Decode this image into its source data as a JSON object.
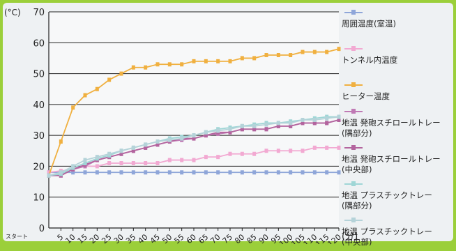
{
  "chart_data": {
    "type": "line",
    "ylabel": "(°C)",
    "xlabel": "(分)",
    "ylim": [
      0,
      70
    ],
    "yticks": [
      0,
      10,
      20,
      30,
      40,
      50,
      60,
      70
    ],
    "x_start_label": "スタート",
    "x": [
      0,
      5,
      10,
      15,
      20,
      25,
      30,
      35,
      40,
      45,
      50,
      55,
      60,
      65,
      70,
      75,
      80,
      85,
      90,
      95,
      100,
      105,
      110,
      115,
      120
    ],
    "x_tick_labels": [
      "5",
      "10",
      "15",
      "20",
      "25",
      "30",
      "35",
      "40",
      "45",
      "50",
      "55",
      "60",
      "65",
      "70",
      "75",
      "80",
      "85",
      "90",
      "95",
      "100",
      "105",
      "110",
      "115",
      "120"
    ],
    "grid": true,
    "legend_position": "right",
    "series": [
      {
        "name": "周囲温度(室温)",
        "color": "#8fa6d9",
        "values": [
          18,
          18,
          18,
          18,
          18,
          18,
          18,
          18,
          18,
          18,
          18,
          18,
          18,
          18,
          18,
          18,
          18,
          18,
          18,
          18,
          18,
          18,
          18,
          18,
          18
        ]
      },
      {
        "name": "トンネル内温度",
        "color": "#f2a9d2",
        "values": [
          18,
          18.5,
          19,
          20,
          20,
          21,
          21,
          21,
          21,
          21,
          22,
          22,
          22,
          23,
          23,
          24,
          24,
          24,
          25,
          25,
          25,
          25,
          26,
          26,
          26
        ]
      },
      {
        "name": "ヒーター温度",
        "color": "#f0b040",
        "values": [
          17,
          28,
          39,
          43,
          45,
          48,
          50,
          52,
          52,
          53,
          53,
          53,
          54,
          54,
          54,
          54,
          55,
          55,
          56,
          56,
          56,
          57,
          57,
          57,
          58
        ]
      },
      {
        "name": "地温 発砲スチロールトレー\n(隅部分)",
        "color": "#c07ab5",
        "values": [
          17,
          17,
          19,
          20,
          22,
          23,
          24,
          25,
          26,
          27,
          28,
          28.5,
          29,
          30,
          30.5,
          31,
          32,
          32,
          32,
          33,
          33,
          34,
          34,
          34,
          35
        ]
      },
      {
        "name": "地温 発砲スチロールトレー\n(中央部)",
        "color": "#b3649e",
        "values": [
          17,
          17,
          19,
          20.5,
          22,
          23,
          24,
          25,
          26,
          27,
          28,
          29,
          29,
          30,
          31,
          31,
          32,
          32,
          32,
          33,
          33,
          34,
          34,
          34,
          35
        ]
      },
      {
        "name": "地温 プラスチックトレー\n(隅部分)",
        "color": "#9fd6d6",
        "values": [
          17,
          17.5,
          19.5,
          21,
          22.5,
          23.5,
          25,
          26,
          27,
          28,
          29,
          29.5,
          30,
          31,
          32,
          32.5,
          33,
          33.5,
          34,
          34,
          34.5,
          35,
          35.5,
          36,
          36
        ]
      },
      {
        "name": "地温 プラスチックトレー\n(中央部)",
        "color": "#b5d3d9",
        "values": [
          17,
          18,
          20,
          22,
          23,
          24,
          25,
          26,
          27,
          28,
          28.5,
          29,
          30,
          31,
          31.5,
          32,
          33,
          33,
          33.5,
          34,
          34,
          35,
          35,
          35.5,
          36
        ]
      }
    ]
  }
}
